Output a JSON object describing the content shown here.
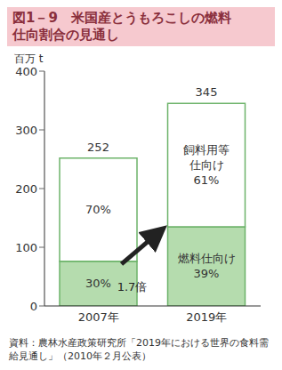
{
  "chart_data": {
    "type": "bar",
    "title": "図1－9　米国産とうもろこしの燃料仕向割合の見通し",
    "y_label": "百万 t",
    "annotation": "1.7倍",
    "source": "資料：農林水産政策研究所「2019年における世界の食料需給見通し」（2010年２月公表）",
    "categories": [
      "2007年",
      "2019年"
    ],
    "stacked": true,
    "series": [
      {
        "name": "燃料仕向け",
        "color": "#b5dcae",
        "values": [
          76,
          135
        ],
        "shares": [
          {
            "value": 30,
            "label": "30%"
          },
          {
            "value": 39,
            "label": "39%"
          }
        ]
      },
      {
        "name": "飼料用等仕向け",
        "color": "#ffffff",
        "values": [
          176,
          210
        ],
        "shares": [
          {
            "value": 70,
            "label": "70%"
          },
          {
            "value": 61,
            "label": "61%"
          }
        ]
      }
    ],
    "totals": [
      252,
      345
    ],
    "ylim": [
      0,
      400
    ],
    "yticks": [
      0,
      100,
      200,
      300,
      400
    ],
    "grid": false
  }
}
